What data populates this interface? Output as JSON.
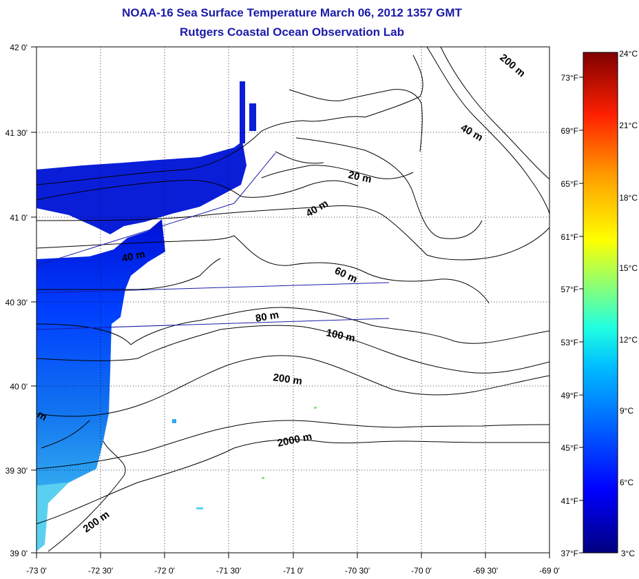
{
  "title": {
    "line1": "NOAA-16 Sea Surface Temperature March 06, 2012 1357 GMT",
    "line2": "Rutgers Coastal Ocean Observation Lab"
  },
  "map": {
    "lon_labels": [
      "-73 0'",
      "-72 30'",
      "-72 0'",
      "-71 30'",
      "-71 0'",
      "-70 30'",
      "-70 0'",
      "-69 30'",
      "-69 0'"
    ],
    "lat_labels": [
      "42 0'",
      "41 30'",
      "41 0'",
      "40 30'",
      "40 0'",
      "39 30'",
      "39 0'"
    ],
    "isobath_labels": [
      {
        "text": "20 m"
      },
      {
        "text": "40 m"
      },
      {
        "text": "40 m"
      },
      {
        "text": "40 m"
      },
      {
        "text": "60 m"
      },
      {
        "text": "80 m"
      },
      {
        "text": "100 m"
      },
      {
        "text": "200 m"
      },
      {
        "text": "200 m"
      },
      {
        "text": "200 m"
      },
      {
        "text": "2000 m"
      },
      {
        "text": "m"
      }
    ]
  },
  "colorbar": {
    "celsius": [
      "24°C",
      "21°C",
      "18°C",
      "15°C",
      "12°C",
      "9°C",
      "6°C",
      "3°C"
    ],
    "fahrenheit": [
      "73°F",
      "69°F",
      "65°F",
      "61°F",
      "57°F",
      "53°F",
      "49°F",
      "45°F",
      "41°F",
      "37°F"
    ],
    "colors": [
      "#7f0000",
      "#ff0000",
      "#ff8000",
      "#ffff00",
      "#80ff80",
      "#00ffff",
      "#0080ff",
      "#0000ff",
      "#00007f"
    ]
  }
}
